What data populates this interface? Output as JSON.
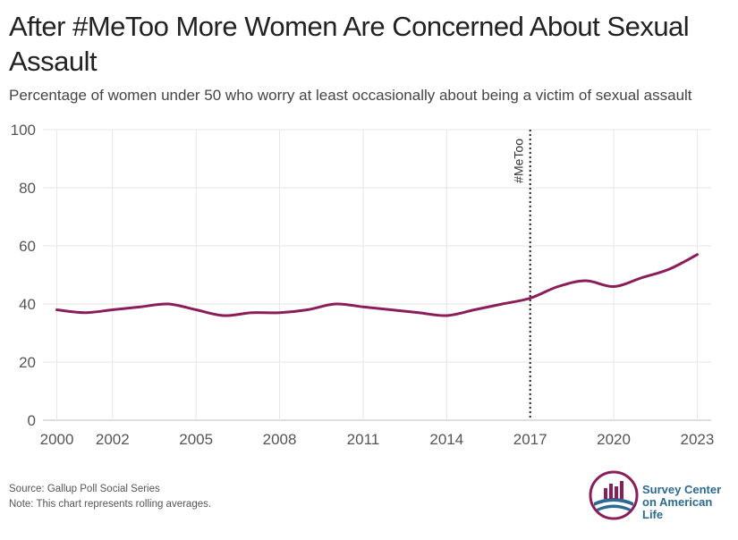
{
  "title": "After #MeToo More Women Are Concerned About Sexual Assault",
  "subtitle": "Percentage of women under 50 who worry at least occasionally about being a victim of sexual assault",
  "footer": {
    "source": "Source: Gallup Poll Social Series",
    "note": "Note: This chart represents rolling averages."
  },
  "logo": {
    "line1": "Survey Center",
    "line2": "on American Life",
    "icon": "bar-chart-globe-icon"
  },
  "colors": {
    "line": "#8b1e5a",
    "grid": "#e6e6e6",
    "axis_text": "#555555",
    "logo_blue": "#2c6a93",
    "logo_maroon": "#8b1e5a"
  },
  "chart_data": {
    "type": "line",
    "title": "After #MeToo More Women Are Concerned About Sexual Assault",
    "subtitle": "Percentage of women under 50 who worry at least occasionally about being a victim of sexual assault",
    "xlabel": "",
    "ylabel": "",
    "ylim": [
      0,
      100
    ],
    "yticks": [
      0,
      20,
      40,
      60,
      80,
      100
    ],
    "xlim": [
      1999.5,
      2023.5
    ],
    "xticks": [
      2000,
      2002,
      2005,
      2008,
      2011,
      2014,
      2017,
      2020,
      2023
    ],
    "grid": true,
    "series": [
      {
        "x": [
          2000,
          2001,
          2002,
          2003,
          2004,
          2005,
          2006,
          2007,
          2008,
          2009,
          2010,
          2011,
          2012,
          2013,
          2014,
          2015,
          2016,
          2017,
          2018,
          2019,
          2020,
          2021,
          2022,
          2023
        ],
        "values": [
          38,
          37,
          38,
          39,
          40,
          38,
          36,
          37,
          37,
          38,
          40,
          39,
          38,
          37,
          36,
          38,
          40,
          42,
          46,
          48,
          46,
          49,
          52,
          57
        ]
      }
    ],
    "annotations": [
      {
        "type": "vline",
        "x": 2017,
        "label": "#MeToo",
        "style": "dotted"
      }
    ]
  }
}
